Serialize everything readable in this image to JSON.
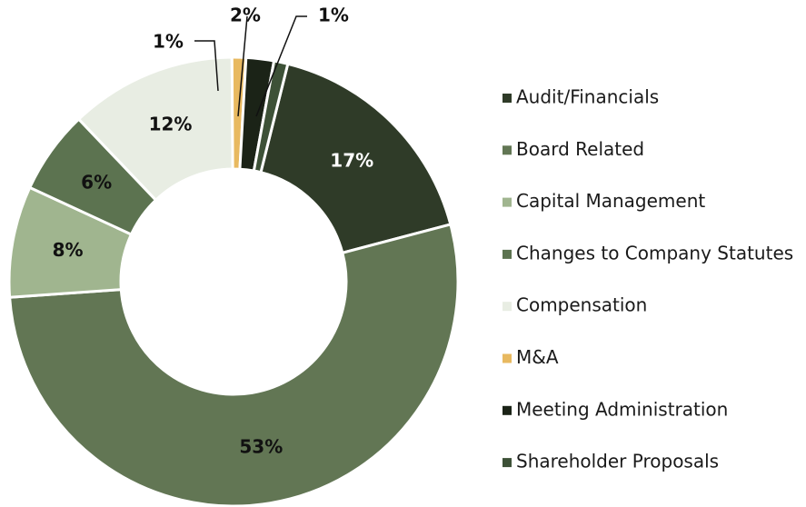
{
  "chart_data": {
    "type": "donut",
    "categories": [
      "Audit/Financials",
      "Board Related",
      "Capital Management",
      "Changes to Company Statutes",
      "Compensation",
      "M&A",
      "Meeting Administration",
      "Shareholder Proposals"
    ],
    "values": [
      17,
      53,
      8,
      6,
      12,
      1,
      2,
      1
    ],
    "value_labels": [
      "17%",
      "53%",
      "8%",
      "6%",
      "12%",
      "1%",
      "2%",
      "1%"
    ],
    "colors": [
      "#2f3b28",
      "#627654",
      "#a0b58f",
      "#5c7350",
      "#e8ede3",
      "#e8b960",
      "#1b2317",
      "#3d5137"
    ],
    "legend": "right"
  }
}
